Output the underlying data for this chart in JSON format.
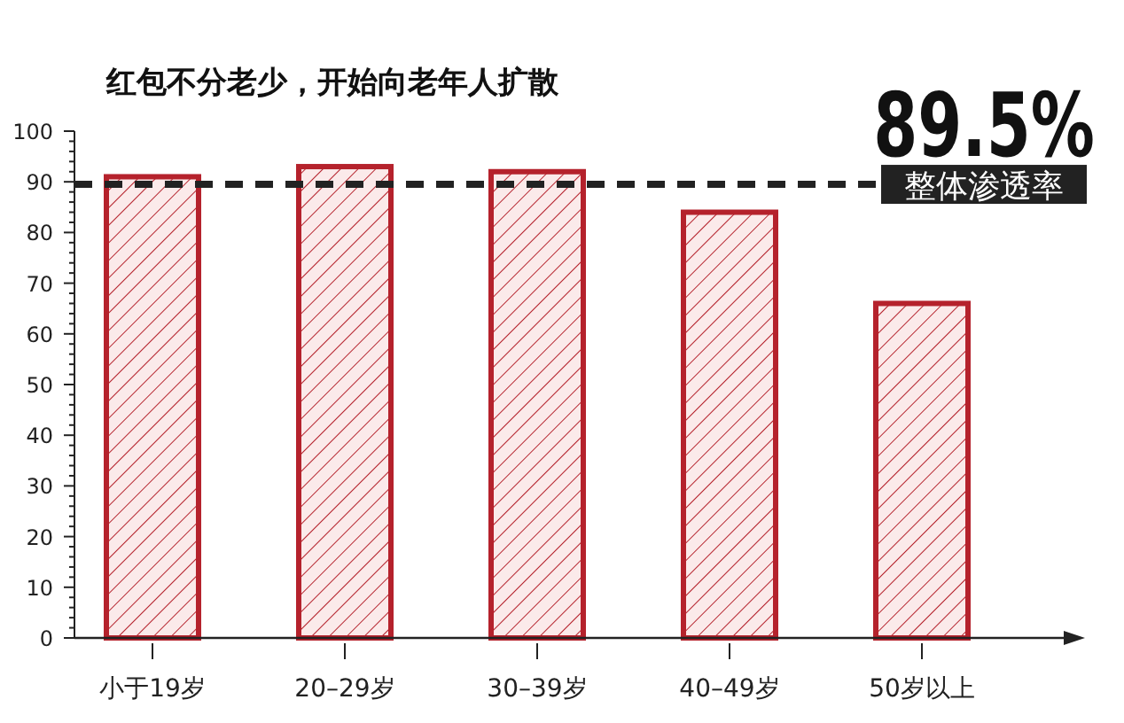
{
  "chart_data": {
    "type": "bar",
    "title": "红包不分老少，开始向老年人扩散",
    "categories": [
      "小于19岁",
      "20–29岁",
      "30–39岁",
      "40–49岁",
      "50岁以上"
    ],
    "values": [
      91,
      93,
      92,
      84,
      66
    ],
    "color": "#b5222c",
    "ylim": [
      0,
      100
    ],
    "yticks": [
      0,
      {
        "value": 2,
        "label": null
      },
      {
        "value": 4,
        "label": null
      },
      {
        "value": 6,
        "label": null
      },
      {
        "value": 8,
        "label": null
      },
      10,
      {
        "value": 12,
        "label": null
      },
      {
        "value": 14,
        "label": null
      },
      {
        "value": 16,
        "label": null
      },
      {
        "value": 18,
        "label": null
      },
      20,
      {
        "value": 22,
        "label": null
      },
      {
        "value": 24,
        "label": null
      },
      {
        "value": 26,
        "label": null
      },
      {
        "value": 28,
        "label": null
      },
      30,
      {
        "value": 32,
        "label": null
      },
      {
        "value": 34,
        "label": null
      },
      {
        "value": 36,
        "label": null
      },
      {
        "value": 38,
        "label": null
      },
      40,
      {
        "value": 42,
        "label": null
      },
      {
        "value": 44,
        "label": null
      },
      {
        "value": 46,
        "label": null
      },
      {
        "value": 48,
        "label": null
      },
      50,
      {
        "value": 52,
        "label": null
      },
      {
        "value": 54,
        "label": null
      },
      {
        "value": 56,
        "label": null
      },
      {
        "value": 58,
        "label": null
      },
      60,
      {
        "value": 62,
        "label": null
      },
      {
        "value": 64,
        "label": null
      },
      {
        "value": 66,
        "label": null
      },
      {
        "value": 68,
        "label": null
      },
      70,
      {
        "value": 72,
        "label": null
      },
      {
        "value": 74,
        "label": null
      },
      {
        "value": 76,
        "label": null
      },
      {
        "value": 78,
        "label": null
      },
      80,
      {
        "value": 82,
        "label": null
      },
      {
        "value": 84,
        "label": null
      },
      {
        "value": 86,
        "label": null
      },
      {
        "value": 88,
        "label": null
      },
      90,
      {
        "value": 92,
        "label": null
      },
      {
        "value": 94,
        "label": null
      },
      {
        "value": 96,
        "label": null
      },
      {
        "value": 98,
        "label": null
      },
      100
    ],
    "grid": false,
    "ref_lines": [
      {
        "axis": "y",
        "value": 89.5,
        "label": "整体渗透率",
        "color": "#222222",
        "line_style": "dashed"
      }
    ],
    "annotations": [
      "89.5%"
    ]
  }
}
